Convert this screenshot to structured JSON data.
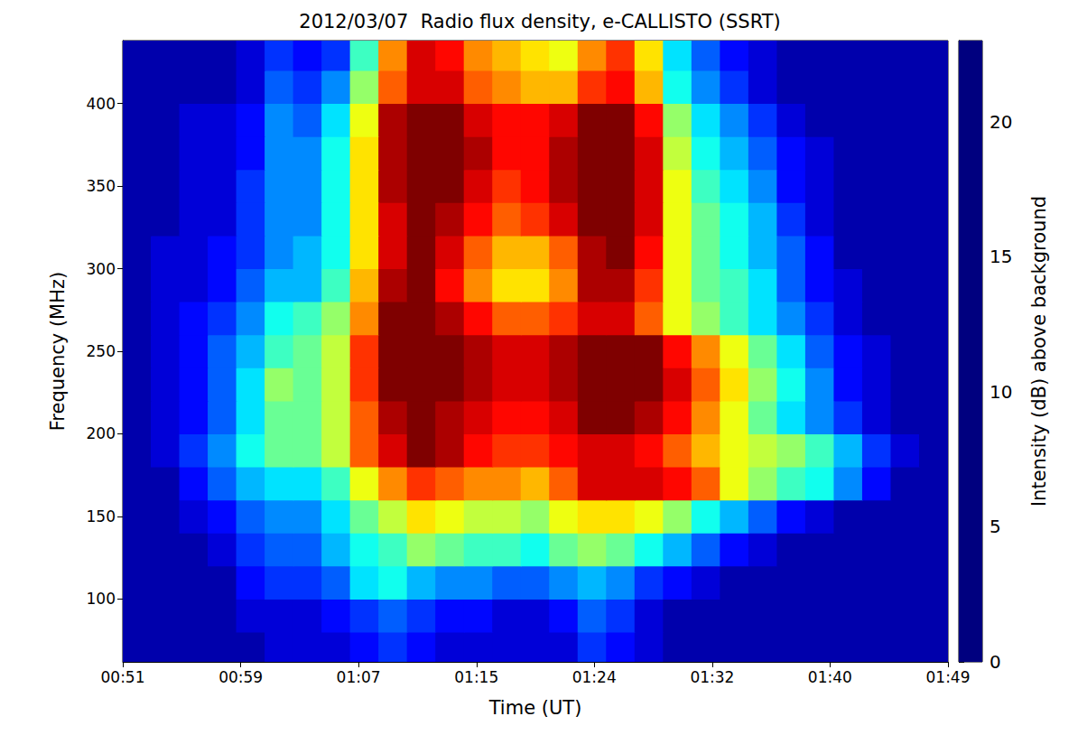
{
  "chart_data": {
    "type": "heatmap",
    "title": "2012/03/07  Radio flux density, e-CALLISTO (SSRT)",
    "x_label": "Time (UT)",
    "y_label": "Frequency (MHz)",
    "x": [
      52,
      54,
      56,
      58,
      60,
      62,
      64,
      66,
      68,
      70,
      72,
      74,
      76,
      78,
      80,
      82,
      84,
      86,
      88,
      90,
      92,
      94,
      96,
      98,
      100,
      102,
      104,
      106,
      108
    ],
    "y": [
      70,
      90,
      110,
      130,
      150,
      170,
      190,
      210,
      230,
      250,
      270,
      290,
      310,
      330,
      350,
      370,
      390,
      410,
      430
    ],
    "values": [
      [
        1,
        1,
        1,
        1,
        1,
        2,
        2,
        2,
        3,
        4,
        3,
        2,
        2,
        2,
        2,
        2,
        4,
        3,
        2,
        1,
        1,
        1,
        1,
        1,
        1,
        1,
        1,
        1,
        1
      ],
      [
        1,
        1,
        1,
        1,
        2,
        2,
        2,
        3,
        4,
        5,
        4,
        3,
        3,
        2,
        2,
        3,
        5,
        4,
        2,
        1,
        1,
        1,
        1,
        1,
        1,
        1,
        1,
        1,
        1
      ],
      [
        1,
        1,
        1,
        1,
        3,
        4,
        4,
        5,
        8,
        9,
        7,
        6,
        6,
        5,
        5,
        6,
        7,
        6,
        4,
        3,
        2,
        1,
        1,
        1,
        1,
        1,
        1,
        1,
        1
      ],
      [
        1,
        1,
        1,
        2,
        4,
        5,
        5,
        7,
        9,
        10,
        12,
        11,
        10,
        10,
        9,
        11,
        12,
        11,
        9,
        7,
        5,
        3,
        2,
        1,
        1,
        1,
        1,
        1,
        1
      ],
      [
        1,
        1,
        2,
        3,
        5,
        6,
        6,
        8,
        11,
        13,
        15,
        14,
        13,
        13,
        12,
        14,
        15,
        15,
        14,
        12,
        9,
        7,
        5,
        3,
        2,
        1,
        1,
        1,
        1
      ],
      [
        1,
        1,
        3,
        5,
        7,
        8,
        8,
        10,
        14,
        17,
        19,
        18,
        17,
        17,
        16,
        18,
        21,
        21,
        21,
        20,
        18,
        14,
        12,
        10,
        9,
        6,
        3,
        1,
        1
      ],
      [
        1,
        2,
        4,
        6,
        9,
        11,
        11,
        13,
        18,
        21,
        23,
        22,
        20,
        19,
        19,
        20,
        21,
        21,
        20,
        18,
        16,
        14,
        13,
        12,
        10,
        7,
        4,
        2,
        1
      ],
      [
        1,
        2,
        3,
        5,
        8,
        11,
        11,
        13,
        18,
        22,
        23,
        22,
        21,
        20,
        20,
        21,
        23,
        23,
        22,
        20,
        17,
        14,
        11,
        8,
        6,
        4,
        2,
        1,
        1
      ],
      [
        1,
        2,
        3,
        5,
        8,
        12,
        11,
        13,
        19,
        23,
        23,
        23,
        22,
        21,
        21,
        22,
        23,
        23,
        23,
        21,
        18,
        15,
        12,
        9,
        6,
        3,
        2,
        1,
        1
      ],
      [
        1,
        2,
        3,
        5,
        7,
        10,
        11,
        13,
        19,
        23,
        23,
        23,
        22,
        21,
        21,
        22,
        23,
        23,
        23,
        20,
        17,
        14,
        11,
        8,
        5,
        3,
        2,
        1,
        1
      ],
      [
        1,
        2,
        3,
        4,
        6,
        9,
        10,
        12,
        17,
        23,
        23,
        22,
        20,
        18,
        18,
        19,
        21,
        21,
        18,
        14,
        12,
        10,
        8,
        6,
        4,
        2,
        1,
        1,
        1
      ],
      [
        1,
        2,
        2,
        3,
        5,
        7,
        7,
        10,
        16,
        22,
        23,
        20,
        17,
        15,
        15,
        17,
        22,
        22,
        19,
        14,
        11,
        10,
        8,
        5,
        3,
        2,
        1,
        1,
        1
      ],
      [
        1,
        2,
        2,
        3,
        4,
        6,
        7,
        9,
        15,
        21,
        23,
        21,
        18,
        16,
        16,
        18,
        22,
        23,
        20,
        14,
        11,
        9,
        7,
        5,
        3,
        1,
        1,
        1,
        1
      ],
      [
        1,
        1,
        2,
        2,
        4,
        6,
        6,
        9,
        15,
        21,
        23,
        22,
        20,
        18,
        19,
        21,
        23,
        23,
        21,
        14,
        11,
        9,
        7,
        4,
        2,
        1,
        1,
        1,
        1
      ],
      [
        1,
        1,
        2,
        2,
        4,
        6,
        6,
        9,
        15,
        22,
        23,
        23,
        21,
        19,
        20,
        22,
        23,
        23,
        21,
        14,
        10,
        8,
        6,
        3,
        2,
        1,
        1,
        1,
        1
      ],
      [
        1,
        1,
        2,
        2,
        3,
        6,
        6,
        9,
        15,
        22,
        23,
        23,
        22,
        20,
        20,
        22,
        23,
        23,
        21,
        13,
        9,
        7,
        5,
        3,
        2,
        1,
        1,
        1,
        1
      ],
      [
        1,
        1,
        2,
        2,
        3,
        6,
        5,
        8,
        14,
        22,
        23,
        23,
        21,
        20,
        20,
        21,
        23,
        23,
        20,
        12,
        8,
        6,
        4,
        2,
        1,
        1,
        1,
        1,
        1
      ],
      [
        1,
        1,
        1,
        1,
        2,
        5,
        4,
        6,
        12,
        18,
        21,
        21,
        18,
        17,
        16,
        16,
        19,
        20,
        16,
        9,
        6,
        4,
        2,
        1,
        1,
        1,
        1,
        1,
        1
      ],
      [
        1,
        1,
        1,
        1,
        2,
        4,
        3,
        4,
        10,
        17,
        21,
        20,
        17,
        16,
        15,
        14,
        17,
        19,
        15,
        8,
        5,
        3,
        2,
        1,
        1,
        1,
        1,
        1,
        1
      ]
    ],
    "xlim": [
      51,
      109
    ],
    "xticks": [
      {
        "value": 51,
        "label": "00:51"
      },
      {
        "value": 59.29,
        "label": "00:59"
      },
      {
        "value": 67.57,
        "label": "01:07"
      },
      {
        "value": 75.86,
        "label": "01:15"
      },
      {
        "value": 84.14,
        "label": "01:24"
      },
      {
        "value": 92.43,
        "label": "01:32"
      },
      {
        "value": 100.71,
        "label": "01:40"
      },
      {
        "value": 109,
        "label": "01:49"
      }
    ],
    "ylim": [
      62,
      438
    ],
    "yticks": [
      100,
      150,
      200,
      250,
      300,
      350,
      400
    ],
    "grid": false,
    "colorbar_label": "Intensity (dB) above background",
    "colorbar_range": [
      0,
      23
    ],
    "colorbar_ticks": [
      0,
      5,
      10,
      15,
      20
    ]
  }
}
